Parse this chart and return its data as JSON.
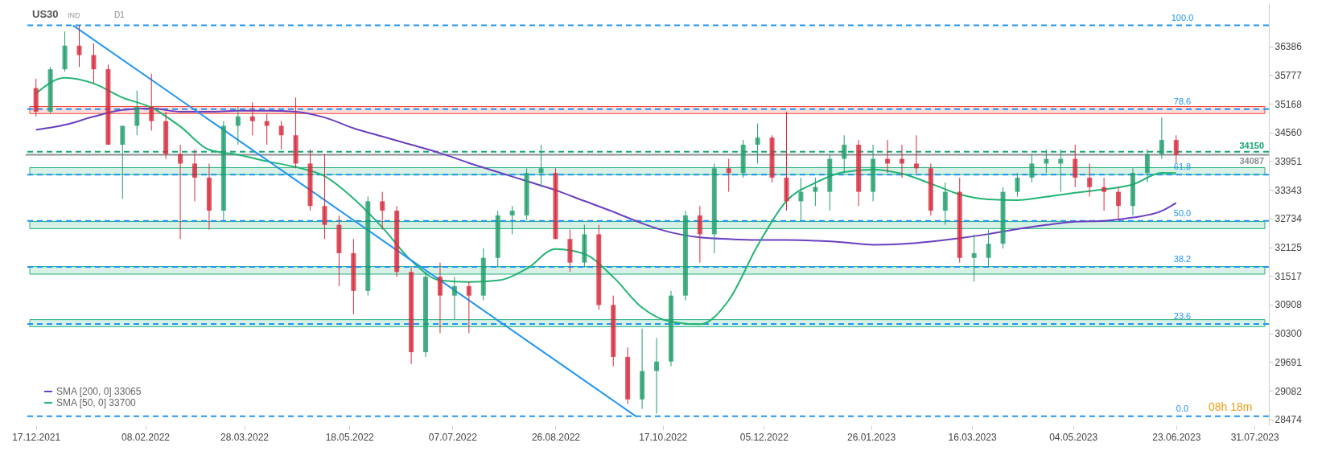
{
  "chart_data": {
    "type": "candlestick",
    "annotations": [
      "US30",
      "IND",
      "D1",
      "08h 18m",
      {
        "text": "100.0",
        "x": "2023-06-26",
        "y": 36830
      },
      {
        "text": "78.6",
        "x": "2023-06-26",
        "y": 35056
      },
      {
        "text": "61.8",
        "x": "2023-06-26",
        "y": 33663
      },
      {
        "text": "50.0",
        "x": "2023-06-26",
        "y": 32685
      },
      {
        "text": "38.2",
        "x": "2023-06-26",
        "y": 31707
      },
      {
        "text": "23.6",
        "x": "2023-06-26",
        "y": 30496
      },
      {
        "text": "0.0",
        "x": "2023-06-26",
        "y": 28540
      }
    ],
    "x": [
      "2021-12-17",
      "2021-12-24",
      "2021-12-31",
      "2022-01-07",
      "2022-01-14",
      "2022-01-21",
      "2022-01-28",
      "2022-02-04",
      "2022-02-11",
      "2022-02-18",
      "2022-02-25",
      "2022-03-04",
      "2022-03-11",
      "2022-03-18",
      "2022-03-25",
      "2022-04-01",
      "2022-04-08",
      "2022-04-15",
      "2022-04-22",
      "2022-04-29",
      "2022-05-06",
      "2022-05-13",
      "2022-05-20",
      "2022-05-27",
      "2022-06-03",
      "2022-06-10",
      "2022-06-17",
      "2022-06-24",
      "2022-07-01",
      "2022-07-08",
      "2022-07-15",
      "2022-07-22",
      "2022-07-29",
      "2022-08-05",
      "2022-08-12",
      "2022-08-19",
      "2022-08-26",
      "2022-09-02",
      "2022-09-09",
      "2022-09-16",
      "2022-09-23",
      "2022-09-30",
      "2022-10-07",
      "2022-10-14",
      "2022-10-21",
      "2022-10-28",
      "2022-11-04",
      "2022-11-11",
      "2022-11-18",
      "2022-11-25",
      "2022-12-02",
      "2022-12-09",
      "2022-12-16",
      "2022-12-23",
      "2022-12-30",
      "2023-01-06",
      "2023-01-13",
      "2023-01-20",
      "2023-01-27",
      "2023-02-03",
      "2023-02-10",
      "2023-02-17",
      "2023-02-24",
      "2023-03-03",
      "2023-03-10",
      "2023-03-17",
      "2023-03-24",
      "2023-03-31",
      "2023-04-07",
      "2023-04-14",
      "2023-04-21",
      "2023-04-28",
      "2023-05-05",
      "2023-05-12",
      "2023-05-19",
      "2023-05-26",
      "2023-06-02",
      "2023-06-09",
      "2023-06-16",
      "2023-06-23"
    ],
    "ohlc": [
      [
        35500,
        35700,
        34900,
        35000
      ],
      [
        35000,
        35950,
        34950,
        35900
      ],
      [
        35900,
        36700,
        35850,
        36400
      ],
      [
        36400,
        36830,
        35950,
        36200
      ],
      [
        36200,
        36450,
        35600,
        35900
      ],
      [
        35900,
        36000,
        34300,
        34300
      ],
      [
        34300,
        34700,
        33150,
        34700
      ],
      [
        34700,
        35450,
        34500,
        35100
      ],
      [
        35100,
        35800,
        34600,
        34800
      ],
      [
        34800,
        35000,
        34000,
        34100
      ],
      [
        34100,
        34300,
        32300,
        33900
      ],
      [
        33900,
        34200,
        33100,
        33600
      ],
      [
        33600,
        33900,
        32500,
        32900
      ],
      [
        32900,
        34800,
        32700,
        34700
      ],
      [
        34700,
        35100,
        34300,
        34900
      ],
      [
        34900,
        35200,
        34500,
        34800
      ],
      [
        34800,
        34950,
        34300,
        34700
      ],
      [
        34700,
        34800,
        34200,
        34500
      ],
      [
        34500,
        35300,
        33800,
        33900
      ],
      [
        33900,
        34200,
        32900,
        33000
      ],
      [
        33000,
        34100,
        32300,
        32600
      ],
      [
        32600,
        32800,
        31300,
        32000
      ],
      [
        32000,
        32300,
        30700,
        31200
      ],
      [
        31200,
        33200,
        31100,
        33100
      ],
      [
        33100,
        33300,
        32500,
        32900
      ],
      [
        32900,
        33000,
        31500,
        31600
      ],
      [
        31600,
        31700,
        29650,
        29900
      ],
      [
        29900,
        31600,
        29800,
        31500
      ],
      [
        31500,
        31800,
        30300,
        31100
      ],
      [
        31100,
        31500,
        30600,
        31300
      ],
      [
        31300,
        31400,
        30300,
        31100
      ],
      [
        31100,
        32100,
        31000,
        31900
      ],
      [
        31900,
        32900,
        31700,
        32800
      ],
      [
        32800,
        33000,
        32400,
        32900
      ],
      [
        32800,
        33800,
        32700,
        33700
      ],
      [
        33700,
        34300,
        33400,
        33800
      ],
      [
        33700,
        33800,
        32300,
        32300
      ],
      [
        32300,
        32500,
        31600,
        31800
      ],
      [
        31800,
        32600,
        31700,
        32400
      ],
      [
        32400,
        32600,
        30800,
        30900
      ],
      [
        30900,
        31100,
        29600,
        29800
      ],
      [
        29800,
        30000,
        28800,
        28900
      ],
      [
        28900,
        30400,
        28700,
        29500
      ],
      [
        29500,
        30200,
        28600,
        29700
      ],
      [
        29700,
        31200,
        29600,
        31100
      ],
      [
        31100,
        32900,
        31000,
        32800
      ],
      [
        32800,
        33000,
        31800,
        32400
      ],
      [
        32400,
        33900,
        32000,
        33800
      ],
      [
        33800,
        34000,
        33300,
        33700
      ],
      [
        33700,
        34400,
        33600,
        34300
      ],
      [
        34300,
        34750,
        33900,
        34450
      ],
      [
        34450,
        34500,
        33500,
        33600
      ],
      [
        33600,
        35000,
        32900,
        33100
      ],
      [
        33100,
        33600,
        32700,
        33300
      ],
      [
        33300,
        33600,
        33000,
        33400
      ],
      [
        33300,
        34100,
        32900,
        34000
      ],
      [
        34000,
        34500,
        33700,
        34300
      ],
      [
        34300,
        34400,
        33000,
        33300
      ],
      [
        33300,
        34300,
        33100,
        34000
      ],
      [
        34000,
        34400,
        33700,
        33900
      ],
      [
        34000,
        34300,
        33600,
        33900
      ],
      [
        33900,
        34500,
        33700,
        33800
      ],
      [
        33800,
        33900,
        32800,
        32900
      ],
      [
        32900,
        33500,
        32600,
        33300
      ],
      [
        33300,
        33600,
        31800,
        31900
      ],
      [
        31900,
        32400,
        31400,
        32000
      ],
      [
        31900,
        32500,
        31700,
        32200
      ],
      [
        32200,
        33400,
        32100,
        33300
      ],
      [
        33300,
        33700,
        33200,
        33600
      ],
      [
        33600,
        34100,
        33500,
        33900
      ],
      [
        33900,
        34200,
        33700,
        34000
      ],
      [
        33900,
        34200,
        33300,
        34000
      ],
      [
        34000,
        34300,
        33400,
        33600
      ],
      [
        33600,
        33900,
        33200,
        33400
      ],
      [
        33400,
        33600,
        32900,
        33300
      ],
      [
        33300,
        33400,
        32700,
        33000
      ],
      [
        33000,
        33800,
        32800,
        33700
      ],
      [
        33700,
        34200,
        33500,
        34100
      ],
      [
        34100,
        34880,
        34000,
        34400
      ],
      [
        34400,
        34500,
        33900,
        34087
      ]
    ],
    "series": [
      {
        "type": "line",
        "name": "SMA [200, 0] 33065",
        "color": "#6a3fc1",
        "x": [
          "2021-12-17",
          "2021-12-31",
          "2022-01-14",
          "2022-01-28",
          "2022-02-11",
          "2022-02-25",
          "2022-03-11",
          "2022-03-25",
          "2022-04-08",
          "2022-04-22",
          "2022-05-06",
          "2022-05-20",
          "2022-06-03",
          "2022-06-17",
          "2022-07-01",
          "2022-07-15",
          "2022-07-29",
          "2022-08-12",
          "2022-08-26",
          "2022-09-09",
          "2022-09-23",
          "2022-10-07",
          "2022-10-21",
          "2022-11-04",
          "2022-11-18",
          "2022-12-02",
          "2022-12-16",
          "2022-12-30",
          "2023-01-13",
          "2023-01-27",
          "2023-02-10",
          "2023-02-24",
          "2023-03-10",
          "2023-03-24",
          "2023-04-07",
          "2023-04-21",
          "2023-05-05",
          "2023-05-19",
          "2023-06-02",
          "2023-06-16",
          "2023-06-23"
        ],
        "values": [
          34614,
          34720,
          34895,
          35035,
          35070,
          35000,
          35000,
          35018,
          35018,
          35000,
          34877,
          34650,
          34474,
          34299,
          34123,
          33913,
          33720,
          33527,
          33334,
          33106,
          32878,
          32632,
          32439,
          32334,
          32299,
          32281,
          32281,
          32264,
          32229,
          32176,
          32194,
          32246,
          32317,
          32405,
          32510,
          32598,
          32668,
          32685,
          32755,
          32895,
          33065
        ]
      },
      {
        "type": "line",
        "name": "SMA [50, 0] 33700",
        "color": "#22b573",
        "x": [
          "2021-12-17",
          "2021-12-31",
          "2022-01-14",
          "2022-01-28",
          "2022-02-11",
          "2022-02-25",
          "2022-03-11",
          "2022-03-25",
          "2022-04-08",
          "2022-04-22",
          "2022-05-06",
          "2022-05-20",
          "2022-06-03",
          "2022-06-17",
          "2022-07-01",
          "2022-07-15",
          "2022-07-29",
          "2022-08-12",
          "2022-08-26",
          "2022-09-09",
          "2022-09-23",
          "2022-10-07",
          "2022-10-21",
          "2022-11-04",
          "2022-11-18",
          "2022-12-02",
          "2022-12-16",
          "2022-12-30",
          "2023-01-13",
          "2023-01-27",
          "2023-02-10",
          "2023-02-24",
          "2023-03-10",
          "2023-03-24",
          "2023-04-07",
          "2023-04-21",
          "2023-05-05",
          "2023-05-19",
          "2023-06-02",
          "2023-06-16",
          "2023-06-23"
        ],
        "values": [
          35386,
          35719,
          35597,
          35298,
          35088,
          34685,
          34193,
          34088,
          33948,
          33825,
          33632,
          33159,
          32545,
          31843,
          31422,
          31387,
          31422,
          31668,
          32089,
          31983,
          31492,
          30843,
          30545,
          30492,
          31001,
          32159,
          33106,
          33492,
          33720,
          33773,
          33685,
          33475,
          33246,
          33141,
          33124,
          33194,
          33281,
          33352,
          33457,
          33703,
          33700
        ]
      },
      {
        "type": "line",
        "color": "#2196f3",
        "x": [
          "2022-01-04",
          "2022-10-04"
        ],
        "values": [
          36830,
          28540
        ]
      }
    ],
    "ref_lines": [
      {
        "axis": "y",
        "value": 36830,
        "color": "#2196f3",
        "line_style": "dashed"
      },
      {
        "axis": "y",
        "value": 35056,
        "color": "#2196f3",
        "line_style": "dashed"
      },
      {
        "axis": "y",
        "value": 33663,
        "color": "#2196f3",
        "line_style": "dashed"
      },
      {
        "axis": "y",
        "value": 32685,
        "color": "#2196f3",
        "line_style": "dashed"
      },
      {
        "axis": "y",
        "value": 31707,
        "color": "#2196f3",
        "line_style": "dashed"
      },
      {
        "axis": "y",
        "value": 30496,
        "color": "#2196f3",
        "line_style": "dashed"
      },
      {
        "axis": "y",
        "value": 28540,
        "color": "#2196f3",
        "line_style": "dashed"
      },
      {
        "axis": "y",
        "value": 34150,
        "label": "34150",
        "color": "#1aa771",
        "line_style": "dashed"
      },
      {
        "axis": "y",
        "value": 34087,
        "label": "34087",
        "color": "#8a9296",
        "line_style": "solid"
      }
    ],
    "bands": [
      {
        "axis": "y",
        "from": 34960,
        "to": 35110,
        "color": "#f44336"
      },
      {
        "axis": "y",
        "from": 33665,
        "to": 33815,
        "color": "#26b07a"
      },
      {
        "axis": "y",
        "from": 32520,
        "to": 32670,
        "color": "#26b07a"
      },
      {
        "axis": "y",
        "from": 31555,
        "to": 31715,
        "color": "#26b07a"
      },
      {
        "axis": "y",
        "from": 30440,
        "to": 30590,
        "color": "#26b07a"
      }
    ],
    "xlim": [
      "2021-12-14",
      "2023-08-05"
    ],
    "xticks": [
      {
        "value": "2021-12-17",
        "label": "17.12.2021"
      },
      {
        "value": "2022-02-08",
        "label": "08.02.2022"
      },
      {
        "value": "2022-03-28",
        "label": "28.03.2022"
      },
      {
        "value": "2022-05-18",
        "label": "18.05.2022"
      },
      {
        "value": "2022-07-07",
        "label": "07.07.2022"
      },
      {
        "value": "2022-08-26",
        "label": "26.08.2022"
      },
      {
        "value": "2022-10-17",
        "label": "17.10.2022"
      },
      {
        "value": "2022-12-05",
        "label": "05.12.2022"
      },
      {
        "value": "2023-01-26",
        "label": "26.01.2023"
      },
      {
        "value": "2023-03-16",
        "label": "16.03.2023"
      },
      {
        "value": "2023-05-04",
        "label": "04.05.2023"
      },
      {
        "value": "2023-06-23",
        "label": "23.06.2023"
      },
      {
        "value": "2023-07-31",
        "label": "31.07.2023"
      }
    ],
    "ylim": [
      28350,
      37300
    ],
    "yticks": [
      28474,
      29082,
      29691,
      30300,
      30908,
      31517,
      32125,
      32734,
      33343,
      33951,
      34560,
      35168,
      35777,
      36386
    ],
    "legend": "bottom left"
  }
}
